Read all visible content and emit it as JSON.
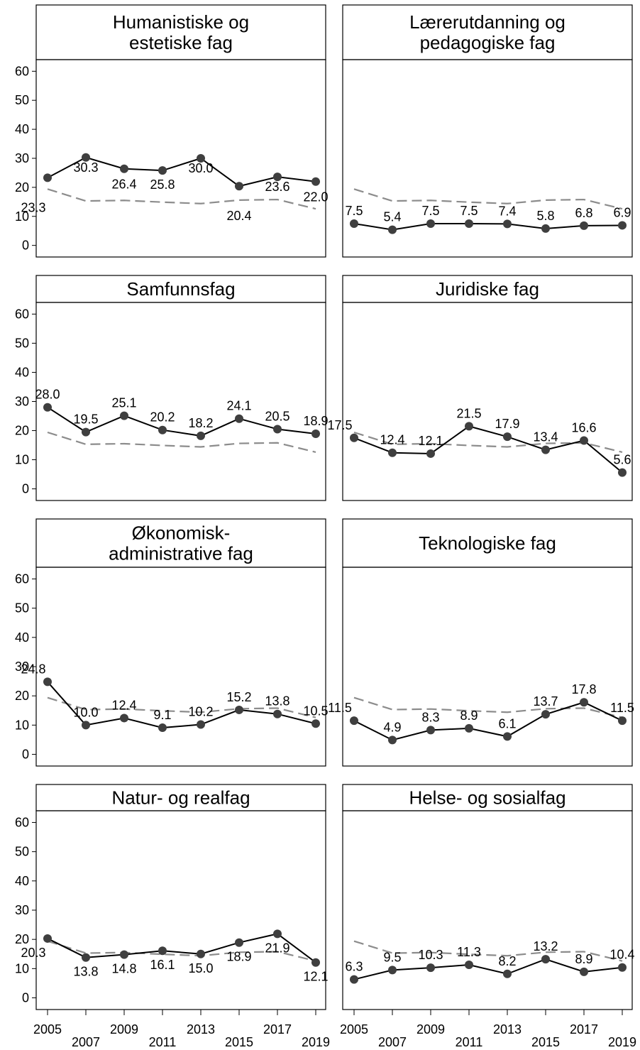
{
  "colors": {
    "series": "#000000",
    "marker": "#3f3f3f",
    "reference": "#8c8c8c",
    "frame": "#000000"
  },
  "chart_data": {
    "type": "line",
    "layout": "small multiples, 4 rows x 2 columns",
    "x": [
      2005,
      2007,
      2009,
      2011,
      2013,
      2015,
      2017,
      2019
    ],
    "x_tick_labels_top": [
      "2005",
      "2009",
      "2013",
      "2017"
    ],
    "x_tick_labels_bottom": [
      "2007",
      "2011",
      "2015",
      "2019"
    ],
    "y_ticks": [
      "0",
      "10",
      "20",
      "30",
      "40",
      "50",
      "60"
    ],
    "ylim": [
      -4,
      64
    ],
    "grid": false,
    "reference_series": [
      19.4,
      15.3,
      15.5,
      14.9,
      14.4,
      15.6,
      15.8,
      12.6
    ],
    "panels": [
      {
        "title_lines": [
          "Humanistiske og",
          "estetiske fag"
        ],
        "values": [
          23.3,
          30.3,
          26.4,
          25.8,
          30.0,
          20.4,
          23.6,
          22.0
        ],
        "labels": [
          "23.3",
          "30.3",
          "26.4",
          "25.8",
          "30.0",
          "20.4",
          "23.6",
          "22.0"
        ]
      },
      {
        "title_lines": [
          "Lærerutdanning og",
          "pedagogiske fag"
        ],
        "values": [
          7.5,
          5.4,
          7.5,
          7.5,
          7.4,
          5.8,
          6.8,
          6.9
        ],
        "labels": [
          "7.5",
          "5.4",
          "7.5",
          "7.5",
          "7.4",
          "5.8",
          "6.8",
          "6.9"
        ]
      },
      {
        "title_lines": [
          "Samfunnsfag"
        ],
        "values": [
          28.0,
          19.5,
          25.1,
          20.2,
          18.2,
          24.1,
          20.5,
          18.9
        ],
        "labels": [
          "28.0",
          "19.5",
          "25.1",
          "20.2",
          "18.2",
          "24.1",
          "20.5",
          "18.9"
        ]
      },
      {
        "title_lines": [
          "Juridiske fag"
        ],
        "values": [
          17.5,
          12.4,
          12.1,
          21.5,
          17.9,
          13.4,
          16.6,
          5.6
        ],
        "labels": [
          "17.5",
          "12.4",
          "12.1",
          "21.5",
          "17.9",
          "13.4",
          "16.6",
          "5.6"
        ]
      },
      {
        "title_lines": [
          "Økonomisk-",
          "administrative fag"
        ],
        "values": [
          24.8,
          10.0,
          12.4,
          9.1,
          10.2,
          15.2,
          13.8,
          10.5
        ],
        "labels": [
          "24.8",
          "10.0",
          "12.4",
          "9.1",
          "10.2",
          "15.2",
          "13.8",
          "10.5"
        ]
      },
      {
        "title_lines": [
          "Teknologiske fag"
        ],
        "values": [
          11.5,
          4.9,
          8.3,
          8.9,
          6.1,
          13.7,
          17.8,
          11.5
        ],
        "labels": [
          "11.5",
          "4.9",
          "8.3",
          "8.9",
          "6.1",
          "13.7",
          "17.8",
          "11.5"
        ]
      },
      {
        "title_lines": [
          "Natur- og realfag"
        ],
        "values": [
          20.3,
          13.8,
          14.8,
          16.1,
          15.0,
          18.9,
          21.9,
          12.1
        ],
        "labels": [
          "20.3",
          "13.8",
          "14.8",
          "16.1",
          "15.0",
          "18.9",
          "21.9",
          "12.1"
        ]
      },
      {
        "title_lines": [
          "Helse- og sosialfag"
        ],
        "values": [
          6.3,
          9.5,
          10.3,
          11.3,
          8.2,
          13.2,
          8.9,
          10.4
        ],
        "labels": [
          "6.3",
          "9.5",
          "10.3",
          "11.3",
          "8.2",
          "13.2",
          "8.9",
          "10.4"
        ]
      }
    ]
  }
}
